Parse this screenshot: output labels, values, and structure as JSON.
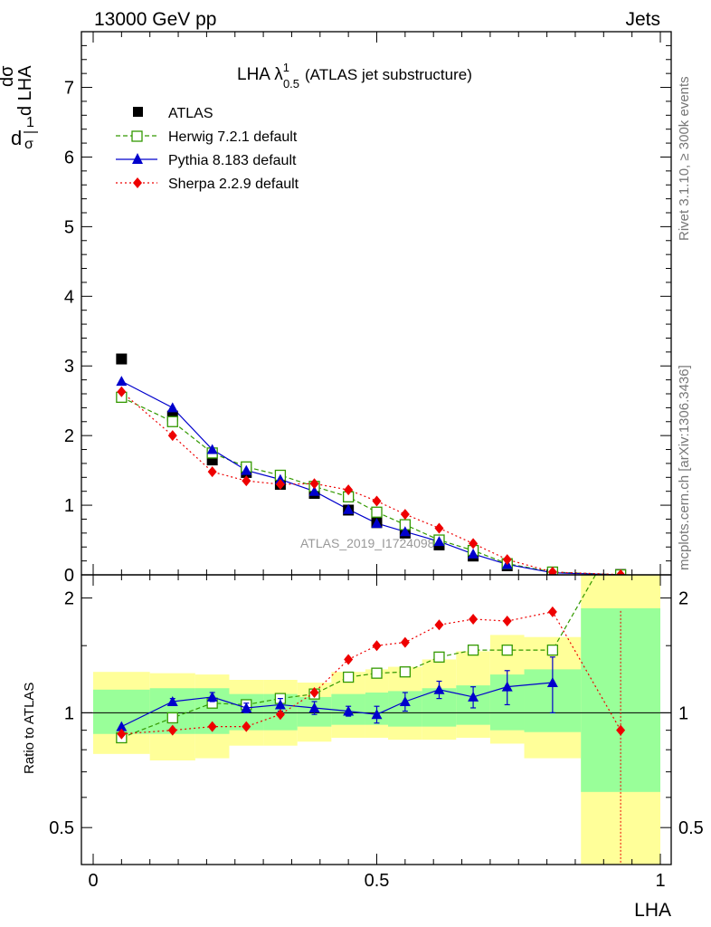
{
  "header": {
    "energy_label": "13000 GeV pp",
    "process_label": "Jets"
  },
  "side_labels": {
    "rivet": "Rivet 3.1.10, ≥ 300k events",
    "mcplots": "mcplots.cern.ch [arXiv:1306.3436]"
  },
  "watermark": "ATLAS_2019_I1724098",
  "chart_data": {
    "type": "line",
    "title": "LHA λ",
    "title_sup": "1",
    "title_sub": "0.5",
    "title_suffix": "(ATLAS jet substructure)",
    "xlabel": "LHA",
    "ylabel_main": "1/σ dσ/d LHA",
    "ylabel_main_parts": {
      "frac1_num": "1",
      "frac1_den": "σ",
      "d1": "d",
      "frac2_num": "dσ",
      "frac2_den": "d LHA"
    },
    "ylabel_ratio": "Ratio to ATLAS",
    "xlim": [
      0,
      1
    ],
    "ylim_main": [
      0,
      7.8
    ],
    "ylim_ratio": [
      0.4,
      2.3
    ],
    "x_ticks": [
      "0",
      "0.5",
      "1"
    ],
    "y_ticks_main": [
      "0",
      "1",
      "2",
      "3",
      "4",
      "5",
      "6",
      "7"
    ],
    "y_ticks_ratio": [
      "0.5",
      "1",
      "2"
    ],
    "legend_position": "top-left",
    "bin_edges": [
      0.0,
      0.1,
      0.18,
      0.24,
      0.3,
      0.36,
      0.42,
      0.48,
      0.52,
      0.58,
      0.64,
      0.7,
      0.76,
      0.86,
      1.0
    ],
    "x": [
      0.05,
      0.14,
      0.21,
      0.27,
      0.33,
      0.39,
      0.45,
      0.5,
      0.55,
      0.61,
      0.67,
      0.73,
      0.81,
      0.93
    ],
    "series": [
      {
        "name": "ATLAS",
        "key": "atlas",
        "color": "#000000",
        "marker": "square",
        "values": [
          3.1,
          2.28,
          1.65,
          1.47,
          1.3,
          1.17,
          0.93,
          0.75,
          0.6,
          0.43,
          0.27,
          0.13,
          0.03,
          0.005
        ]
      },
      {
        "name": "Herwig 7.2.1 default",
        "key": "herwig",
        "color": "#339900",
        "marker": "open-square",
        "dash": "5,3",
        "values": [
          2.55,
          2.2,
          1.75,
          1.55,
          1.43,
          1.27,
          1.12,
          0.9,
          0.72,
          0.5,
          0.35,
          0.16,
          0.04,
          0.0
        ],
        "ratio": [
          0.86,
          0.97,
          1.06,
          1.05,
          1.09,
          1.12,
          1.24,
          1.27,
          1.28,
          1.4,
          1.46,
          1.46,
          1.46,
          3.0
        ]
      },
      {
        "name": "Pythia 8.183 default",
        "key": "pythia",
        "color": "#0000cc",
        "marker": "triangle",
        "dash": "",
        "values": [
          2.78,
          2.4,
          1.8,
          1.5,
          1.37,
          1.2,
          0.94,
          0.74,
          0.62,
          0.48,
          0.3,
          0.15,
          0.03,
          0.0
        ],
        "ratio": [
          0.92,
          1.07,
          1.1,
          1.03,
          1.05,
          1.03,
          1.01,
          0.99,
          1.07,
          1.15,
          1.1,
          1.17,
          1.2,
          null
        ],
        "ratio_err": [
          0.0,
          0.02,
          0.03,
          0.03,
          0.04,
          0.04,
          0.03,
          0.05,
          0.06,
          0.06,
          0.07,
          0.12,
          0.2,
          null
        ]
      },
      {
        "name": "Sherpa 2.2.9 default",
        "key": "sherpa",
        "color": "#ee0000",
        "marker": "diamond",
        "dash": "2,3",
        "values": [
          2.63,
          2.0,
          1.48,
          1.35,
          1.3,
          1.31,
          1.22,
          1.06,
          0.87,
          0.67,
          0.45,
          0.22,
          0.04,
          0.004
        ],
        "ratio": [
          0.88,
          0.9,
          0.92,
          0.92,
          0.99,
          1.13,
          1.38,
          1.5,
          1.53,
          1.7,
          1.76,
          1.74,
          1.84,
          0.9
        ],
        "ratio_err_last": [
          0.35,
          1.85
        ]
      }
    ],
    "ratio_bands": {
      "yellow": [
        [
          0.78,
          1.28
        ],
        [
          0.75,
          1.27
        ],
        [
          0.76,
          1.26
        ],
        [
          0.82,
          1.22
        ],
        [
          0.82,
          1.22
        ],
        [
          0.84,
          1.2
        ],
        [
          0.86,
          1.28
        ],
        [
          0.86,
          1.3
        ],
        [
          0.85,
          1.32
        ],
        [
          0.85,
          1.38
        ],
        [
          0.86,
          1.45
        ],
        [
          0.83,
          1.6
        ],
        [
          0.76,
          1.58
        ],
        [
          0.35,
          2.3
        ]
      ],
      "green": [
        [
          0.88,
          1.15
        ],
        [
          0.88,
          1.16
        ],
        [
          0.88,
          1.16
        ],
        [
          0.9,
          1.12
        ],
        [
          0.9,
          1.12
        ],
        [
          0.92,
          1.1
        ],
        [
          0.93,
          1.12
        ],
        [
          0.93,
          1.13
        ],
        [
          0.92,
          1.14
        ],
        [
          0.92,
          1.16
        ],
        [
          0.93,
          1.18
        ],
        [
          0.9,
          1.26
        ],
        [
          0.89,
          1.3
        ],
        [
          0.62,
          1.88
        ]
      ]
    }
  }
}
